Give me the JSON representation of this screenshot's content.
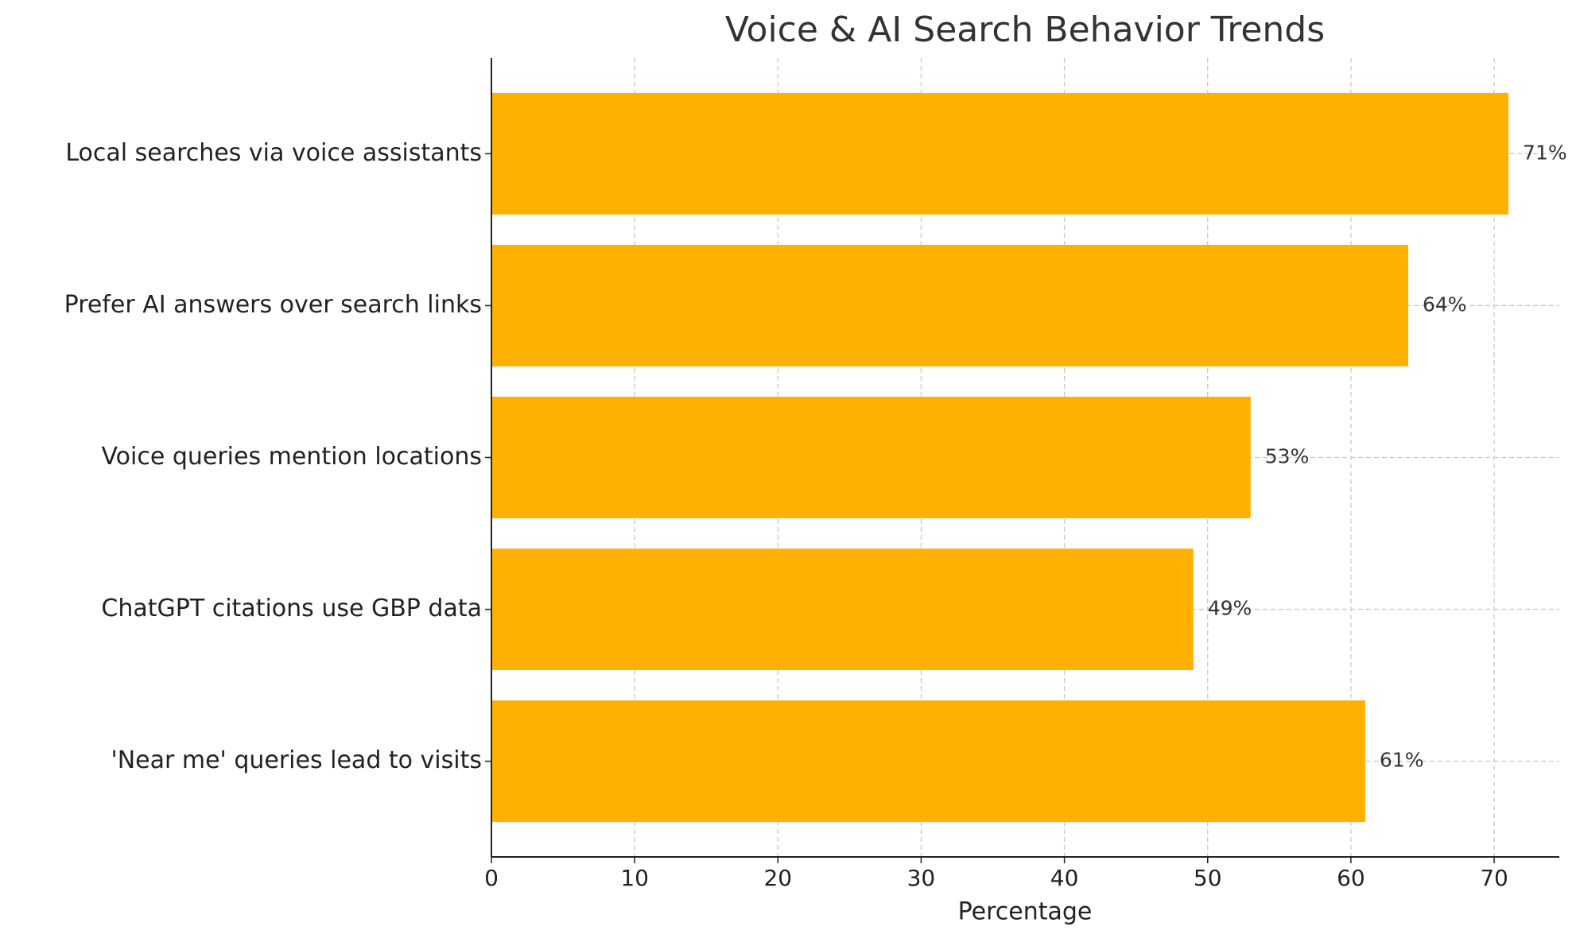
{
  "chart_data": {
    "type": "barh",
    "title": "Voice & AI Search Behavior Trends",
    "x_label": "Percentage",
    "categories": [
      "Local searches via voice assistants",
      "Prefer AI answers over search links",
      "Voice queries mention locations",
      "ChatGPT citations use GBP data",
      "'Near me' queries lead to visits"
    ],
    "values": [
      71,
      64,
      53,
      49,
      61
    ],
    "value_labels": [
      "71%",
      "64%",
      "53%",
      "49%",
      "61%"
    ],
    "color": "#ffb000",
    "xlim": [
      0,
      74.55
    ],
    "xticks": [
      0,
      10,
      20,
      30,
      40,
      50,
      60,
      70
    ],
    "grid": true
  }
}
